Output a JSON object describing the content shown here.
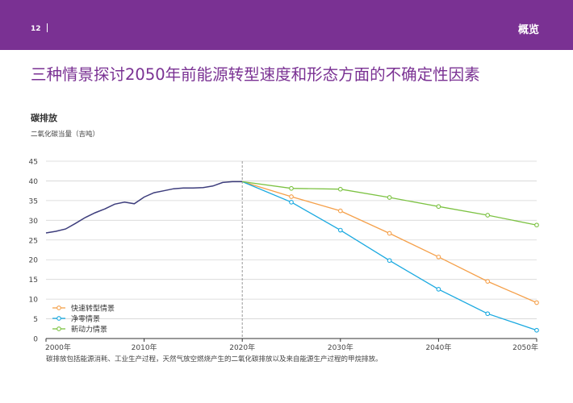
{
  "header": {
    "page_number": "12",
    "section": "概览"
  },
  "main_title": "三种情景探讨2050年前能源转型速度和形态方面的不确定性因素",
  "chart_data": {
    "type": "line",
    "title": "碳排放",
    "ylabel": "二氧化碳当量（吉吨）",
    "ylim": [
      0,
      45
    ],
    "yticks": [
      0,
      5,
      10,
      15,
      20,
      25,
      30,
      35,
      40,
      45
    ],
    "xlim": [
      2000,
      2050
    ],
    "xticks": [
      2000,
      2010,
      2020,
      2030,
      2040,
      2050
    ],
    "xtick_labels": [
      "2000年",
      "2010年",
      "2020年",
      "2030年",
      "2040年",
      "2050年"
    ],
    "grid": true,
    "legend_position": "bottom-left",
    "divider_x": 2020,
    "history": {
      "color": "#3d3d7c",
      "x": [
        2000,
        2001,
        2002,
        2003,
        2004,
        2005,
        2006,
        2007,
        2008,
        2009,
        2010,
        2011,
        2012,
        2013,
        2014,
        2015,
        2016,
        2017,
        2018,
        2019,
        2020
      ],
      "values": [
        26.8,
        27.2,
        27.8,
        29.2,
        30.7,
        31.9,
        32.9,
        34.1,
        34.6,
        34.2,
        35.9,
        37.0,
        37.5,
        38.0,
        38.2,
        38.2,
        38.3,
        38.7,
        39.6,
        39.8,
        39.8
      ]
    },
    "series": [
      {
        "name": "快速转型情景",
        "color": "#f5a04a",
        "x": [
          2020,
          2025,
          2030,
          2035,
          2040,
          2045,
          2050
        ],
        "values": [
          39.8,
          36.0,
          32.4,
          26.7,
          20.7,
          14.5,
          9.1
        ]
      },
      {
        "name": "净零情景",
        "color": "#1aa9e0",
        "x": [
          2020,
          2025,
          2030,
          2035,
          2040,
          2045,
          2050
        ],
        "values": [
          39.8,
          34.6,
          27.5,
          19.8,
          12.5,
          6.3,
          2.1
        ]
      },
      {
        "name": "新动力情景",
        "color": "#7cc242",
        "x": [
          2020,
          2025,
          2030,
          2035,
          2040,
          2045,
          2050
        ],
        "values": [
          39.8,
          38.1,
          37.9,
          35.8,
          33.5,
          31.3,
          28.8
        ]
      }
    ]
  },
  "footnote": "碳排放包括能源消耗、工业生产过程，天然气放空燃烧产生的二氧化碳排放以及来自能源生产过程的甲烷排放。"
}
